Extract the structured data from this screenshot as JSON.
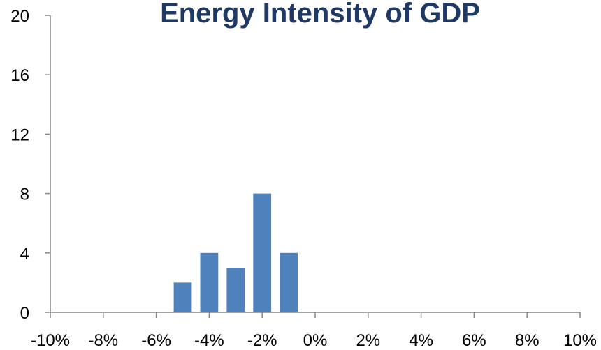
{
  "chart_data": {
    "type": "bar",
    "title": "Energy Intensity of GDP",
    "xlabel": "",
    "ylabel": "",
    "x": [
      -5,
      -4,
      -3,
      -2,
      -1
    ],
    "values": [
      2,
      4,
      3,
      8,
      4
    ],
    "xlim": [
      -10,
      10
    ],
    "ylim": [
      0,
      20
    ],
    "x_ticks": [
      "-10%",
      "-8%",
      "-6%",
      "-4%",
      "-2%",
      "0%",
      "2%",
      "4%",
      "6%",
      "8%",
      "10%"
    ],
    "y_ticks": [
      "0",
      "4",
      "8",
      "12",
      "16",
      "20"
    ],
    "grid": false,
    "legend": "none",
    "bar_color": "#4f81bd"
  }
}
